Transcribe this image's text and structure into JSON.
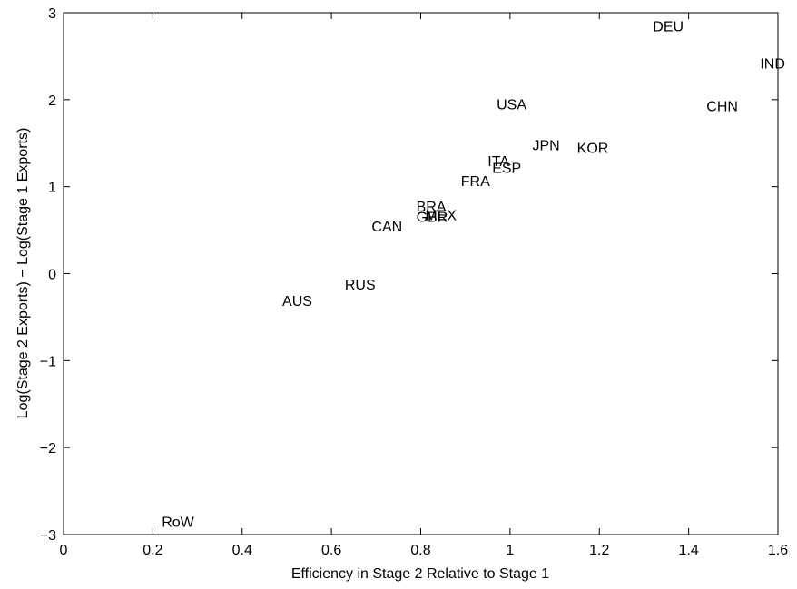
{
  "chart_data": {
    "type": "scatter",
    "title": "",
    "xlabel": "Efficiency in Stage 2 Relative to Stage 1",
    "ylabel": "Log(Stage 2 Exports) − Log(Stage 1 Exports)",
    "xlim": [
      0,
      1.6
    ],
    "ylim": [
      -3,
      3
    ],
    "xticks": [
      0,
      0.2,
      0.4,
      0.6,
      0.8,
      1,
      1.2,
      1.4,
      1.6
    ],
    "xtick_labels": [
      "0",
      "0.2",
      "0.4",
      "0.6",
      "0.8",
      "1",
      "1.2",
      "1.4",
      "1.6"
    ],
    "yticks": [
      -3,
      -2,
      -1,
      0,
      1,
      2,
      3
    ],
    "ytick_labels": [
      "−3",
      "−2",
      "−1",
      "0",
      "1",
      "2",
      "3"
    ],
    "grid": false,
    "points": [
      {
        "label": "DEU",
        "x": 1.32,
        "y": 2.85
      },
      {
        "label": "IND",
        "x": 1.56,
        "y": 2.42
      },
      {
        "label": "USA",
        "x": 0.97,
        "y": 1.95
      },
      {
        "label": "CHN",
        "x": 1.44,
        "y": 1.93
      },
      {
        "label": "JPN",
        "x": 1.05,
        "y": 1.48
      },
      {
        "label": "KOR",
        "x": 1.15,
        "y": 1.45
      },
      {
        "label": "ITA",
        "x": 0.95,
        "y": 1.3
      },
      {
        "label": "ESP",
        "x": 0.96,
        "y": 1.22
      },
      {
        "label": "FRA",
        "x": 0.89,
        "y": 1.07
      },
      {
        "label": "BRA",
        "x": 0.79,
        "y": 0.78
      },
      {
        "label": "MEX",
        "x": 0.81,
        "y": 0.68
      },
      {
        "label": "GBR",
        "x": 0.79,
        "y": 0.66
      },
      {
        "label": "CAN",
        "x": 0.69,
        "y": 0.55
      },
      {
        "label": "RUS",
        "x": 0.63,
        "y": -0.12
      },
      {
        "label": "AUS",
        "x": 0.49,
        "y": -0.31
      },
      {
        "label": "RoW",
        "x": 0.22,
        "y": -2.85
      }
    ]
  }
}
